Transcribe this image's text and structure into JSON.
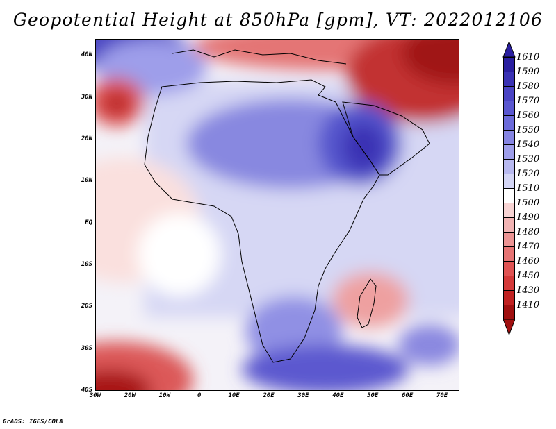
{
  "title": "Geopotential Height at 850hPa [gpm], VT: 2022012106",
  "credit": "GrADS: IGES/COLA",
  "map": {
    "lon_labels": [
      "30W",
      "20W",
      "10W",
      "0",
      "10E",
      "20E",
      "30E",
      "40E",
      "50E",
      "60E",
      "70E"
    ],
    "lon_values": [
      -30,
      -20,
      -10,
      0,
      10,
      20,
      30,
      40,
      50,
      60,
      70
    ],
    "lat_labels": [
      "40N",
      "30N",
      "20N",
      "10N",
      "EQ",
      "10S",
      "20S",
      "30S",
      "40S"
    ],
    "lat_values": [
      40,
      30,
      20,
      10,
      0,
      -10,
      -20,
      -30,
      -40
    ],
    "lon_range": [
      -30,
      75
    ],
    "lat_range": [
      -40,
      44
    ]
  },
  "colorbar": {
    "labels": [
      "1610",
      "1590",
      "1580",
      "1570",
      "1560",
      "1550",
      "1540",
      "1530",
      "1520",
      "1510",
      "1500",
      "1490",
      "1480",
      "1470",
      "1460",
      "1450",
      "1430",
      "1410"
    ],
    "colors": [
      "#2a1fa0",
      "#3a32b4",
      "#4a44c4",
      "#5a57d0",
      "#6c6bda",
      "#8584e2",
      "#9e9eea",
      "#b8b9f0",
      "#d4d6f6",
      "#ffffff",
      "#f8d4d4",
      "#f2b4b4",
      "#ec9494",
      "#e67474",
      "#e05454",
      "#d43a3a",
      "#c02222",
      "#a01010"
    ]
  }
}
